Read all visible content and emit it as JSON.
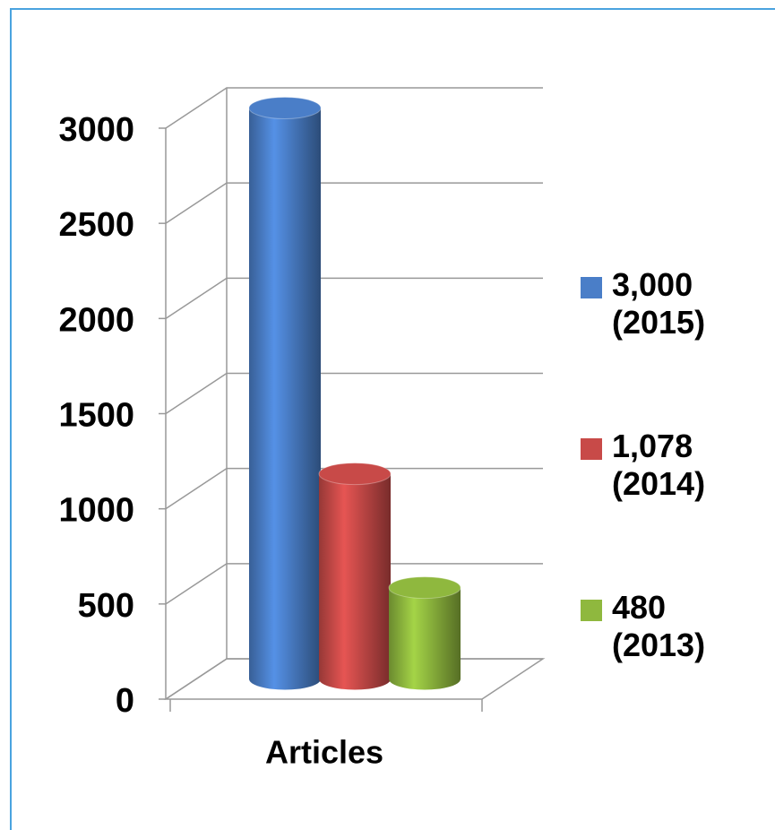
{
  "chart_data": {
    "type": "bar3d_cylinder",
    "categories": [
      "Articles"
    ],
    "series": [
      {
        "name": "3,000 (2015)",
        "color": "#4a7ec8",
        "values": [
          3000
        ]
      },
      {
        "name": "1,078 (2014)",
        "color": "#c84a48",
        "values": [
          1078
        ]
      },
      {
        "name": "480 (2013)",
        "color": "#8fb83e",
        "values": [
          480
        ]
      }
    ],
    "ylim": [
      0,
      3000
    ],
    "yticks": [
      0,
      500,
      1000,
      1500,
      2000,
      2500,
      3000
    ],
    "grid": true,
    "legend": "right"
  }
}
